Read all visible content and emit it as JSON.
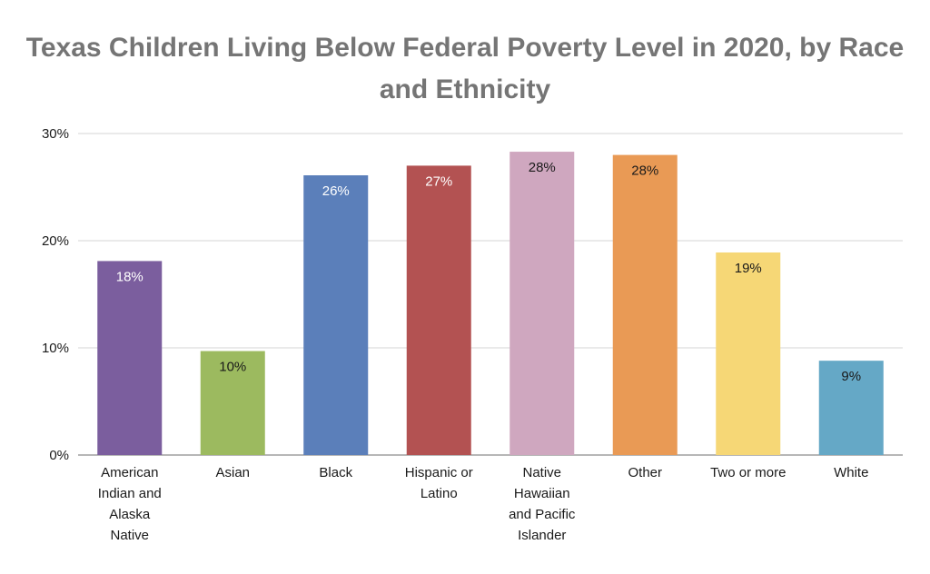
{
  "chart_data": {
    "type": "bar",
    "title": "Texas Children Living Below Federal Poverty Level in 2020, by Race and Ethnicity",
    "xlabel": "",
    "ylabel": "",
    "ylim": [
      0,
      30
    ],
    "yticks": [
      "0%",
      "10%",
      "20%",
      "30%"
    ],
    "grid": true,
    "legend": "none",
    "categories": [
      "American Indian and Alaska Native",
      "Asian",
      "Black",
      "Hispanic or Latino",
      "Native Hawaiian and Pacific Islander",
      "Other",
      "Two or more",
      "White"
    ],
    "category_lines": [
      [
        "American",
        "Indian and",
        "Alaska",
        "Native"
      ],
      [
        "Asian"
      ],
      [
        "Black"
      ],
      [
        "Hispanic or",
        "Latino"
      ],
      [
        "Native",
        "Hawaiian",
        "and Pacific",
        "Islander"
      ],
      [
        "Other"
      ],
      [
        "Two or more"
      ],
      [
        "White"
      ]
    ],
    "values": [
      18.1,
      9.7,
      26.1,
      27.0,
      28.3,
      28.0,
      18.9,
      8.8
    ],
    "data_labels": [
      "18%",
      "10%",
      "26%",
      "27%",
      "28%",
      "28%",
      "19%",
      "9%"
    ],
    "colors": [
      "#7b5e9e",
      "#9cba5f",
      "#5b7fba",
      "#b35252",
      "#cfa7bf",
      "#e99a55",
      "#f6d776",
      "#65a8c6"
    ],
    "label_colors": [
      "#ffffff",
      "#1a1a1a",
      "#ffffff",
      "#ffffff",
      "#1a1a1a",
      "#1a1a1a",
      "#1a1a1a",
      "#1a1a1a"
    ]
  }
}
